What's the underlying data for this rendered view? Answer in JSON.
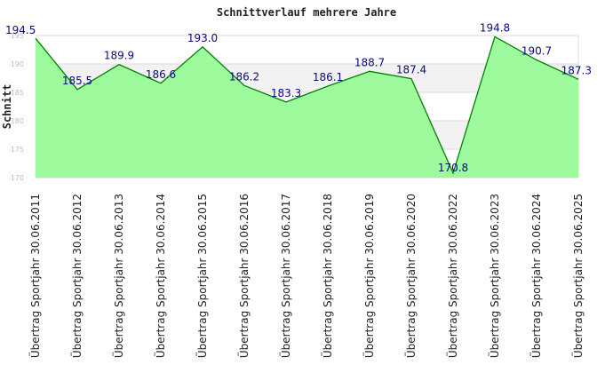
{
  "chart_data": {
    "type": "area",
    "title": "Schnittverlauf mehrere Jahre",
    "xlabel": "",
    "ylabel": "Schnitt",
    "ylim": [
      170,
      195
    ],
    "yticks": [
      170,
      175,
      180,
      185,
      190,
      195
    ],
    "grid": true,
    "categories": [
      "Übertrag Sportjahr 30.06.2011",
      "Übertrag Sportjahr 30.06.2012",
      "Übertrag Sportjahr 30.06.2013",
      "Übertrag Sportjahr 30.06.2014",
      "Übertrag Sportjahr 30.06.2015",
      "Übertrag Sportjahr 30.06.2016",
      "Übertrag Sportjahr 30.06.2017",
      "Übertrag Sportjahr 30.06.2018",
      "Übertrag Sportjahr 30.06.2019",
      "Übertrag Sportjahr 30.06.2020",
      "Übertrag Sportjahr 30.06.2022",
      "Übertrag Sportjahr 30.06.2023",
      "Übertrag Sportjahr 30.06.2024",
      "Übertrag Sportjahr 30.06.2025"
    ],
    "values": [
      194.5,
      185.5,
      189.9,
      186.6,
      193.0,
      186.2,
      183.3,
      186.1,
      188.7,
      187.4,
      170.8,
      194.8,
      190.7,
      187.3
    ],
    "data_labels": [
      "194.5",
      "185.5",
      "189.9",
      "186.6",
      "193.0",
      "186.2",
      "183.3",
      "186.1",
      "188.7",
      "187.4",
      "170.8",
      "194.8",
      "190.7",
      "187.3"
    ],
    "colors": {
      "fill": "#98fb98",
      "line": "#008000",
      "label": "#0a0a80",
      "band": "#f2f2f2",
      "grid": "#dcdcdc"
    }
  }
}
